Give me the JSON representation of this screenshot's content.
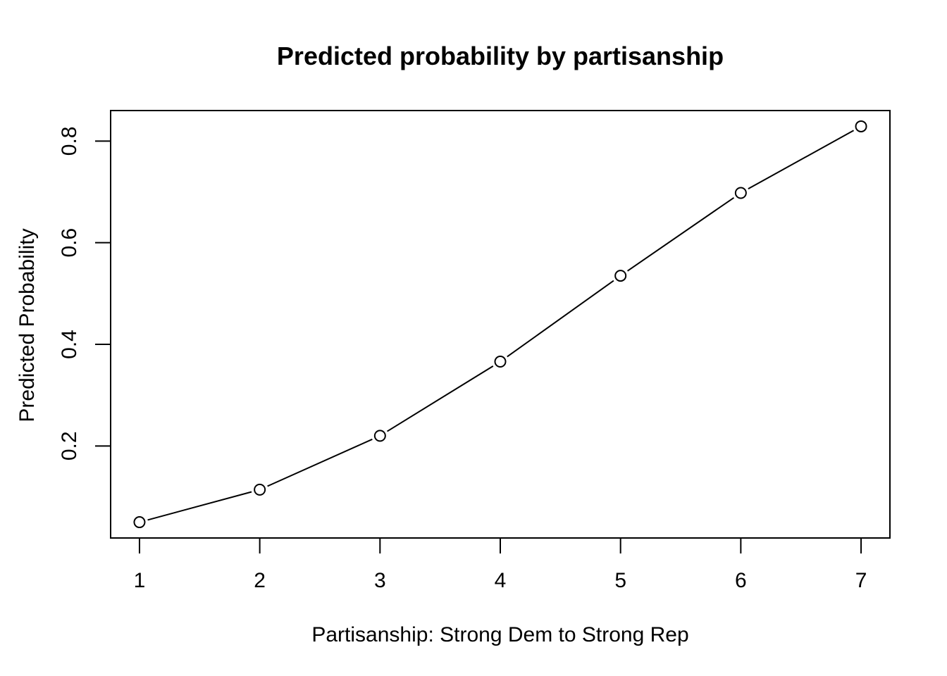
{
  "chart_data": {
    "type": "line",
    "title": "Predicted probability by partisanship",
    "xlabel": "Partisanship: Strong Dem to Strong Rep",
    "ylabel": "Predicted Probability",
    "x": [
      1,
      2,
      3,
      4,
      5,
      6,
      7
    ],
    "series": [
      {
        "values": [
          0.05,
          0.114,
          0.22,
          0.366,
          0.535,
          0.698,
          0.829
        ]
      }
    ],
    "xlim": [
      0.76,
      7.24
    ],
    "ylim": [
      0.0189,
      0.8601
    ],
    "xticks": [
      1,
      2,
      3,
      4,
      5,
      6,
      7
    ],
    "xtick_labels": [
      "1",
      "2",
      "3",
      "4",
      "5",
      "6",
      "7"
    ],
    "yticks": [
      0.2,
      0.4,
      0.6,
      0.8
    ],
    "ytick_labels": [
      "0.2",
      "0.4",
      "0.6",
      "0.8"
    ],
    "grid": false,
    "legend": "none",
    "markers": "open-circle",
    "colors": {
      "line": "#000000",
      "marker_fill": "#ffffff",
      "axes": "#000000"
    }
  }
}
